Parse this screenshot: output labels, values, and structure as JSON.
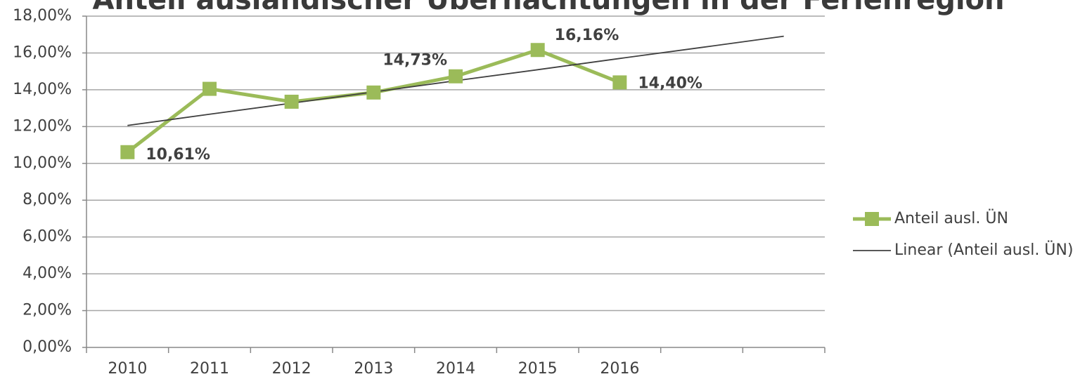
{
  "chart_data": {
    "type": "line",
    "title": "Anteil ausländischer Übernachtungen in der Ferienregion",
    "categories": [
      "2010",
      "2011",
      "2012",
      "2013",
      "2014",
      "2015",
      "2016",
      null,
      null
    ],
    "series": [
      {
        "name": "Anteil ausl. ÜN",
        "color": "#9bbb59",
        "values": [
          10.61,
          14.05,
          13.35,
          13.85,
          14.73,
          16.16,
          14.4,
          null,
          null
        ],
        "value_labels": [
          "10,61%",
          null,
          null,
          null,
          "14,73%",
          "16,16%",
          "14,40%",
          null,
          null
        ]
      },
      {
        "name": "Linear (Anteil ausl. ÜN)",
        "color": "#404040",
        "values": [
          12.06,
          12.67,
          13.27,
          13.88,
          14.49,
          15.09,
          15.7,
          16.3,
          16.91
        ]
      }
    ],
    "ylim": [
      0,
      18
    ],
    "yticks": [
      {
        "value": 0,
        "label": "0,00%"
      },
      {
        "value": 2,
        "label": "2,00%"
      },
      {
        "value": 4,
        "label": "4,00%"
      },
      {
        "value": 6,
        "label": "6,00%"
      },
      {
        "value": 8,
        "label": "8,00%"
      },
      {
        "value": 10,
        "label": "10,00%"
      },
      {
        "value": 12,
        "label": "12,00%"
      },
      {
        "value": 14,
        "label": "14,00%"
      },
      {
        "value": 16,
        "label": "16,00%"
      },
      {
        "value": 18,
        "label": "18,00%"
      }
    ],
    "grid": true,
    "legend": "right"
  }
}
